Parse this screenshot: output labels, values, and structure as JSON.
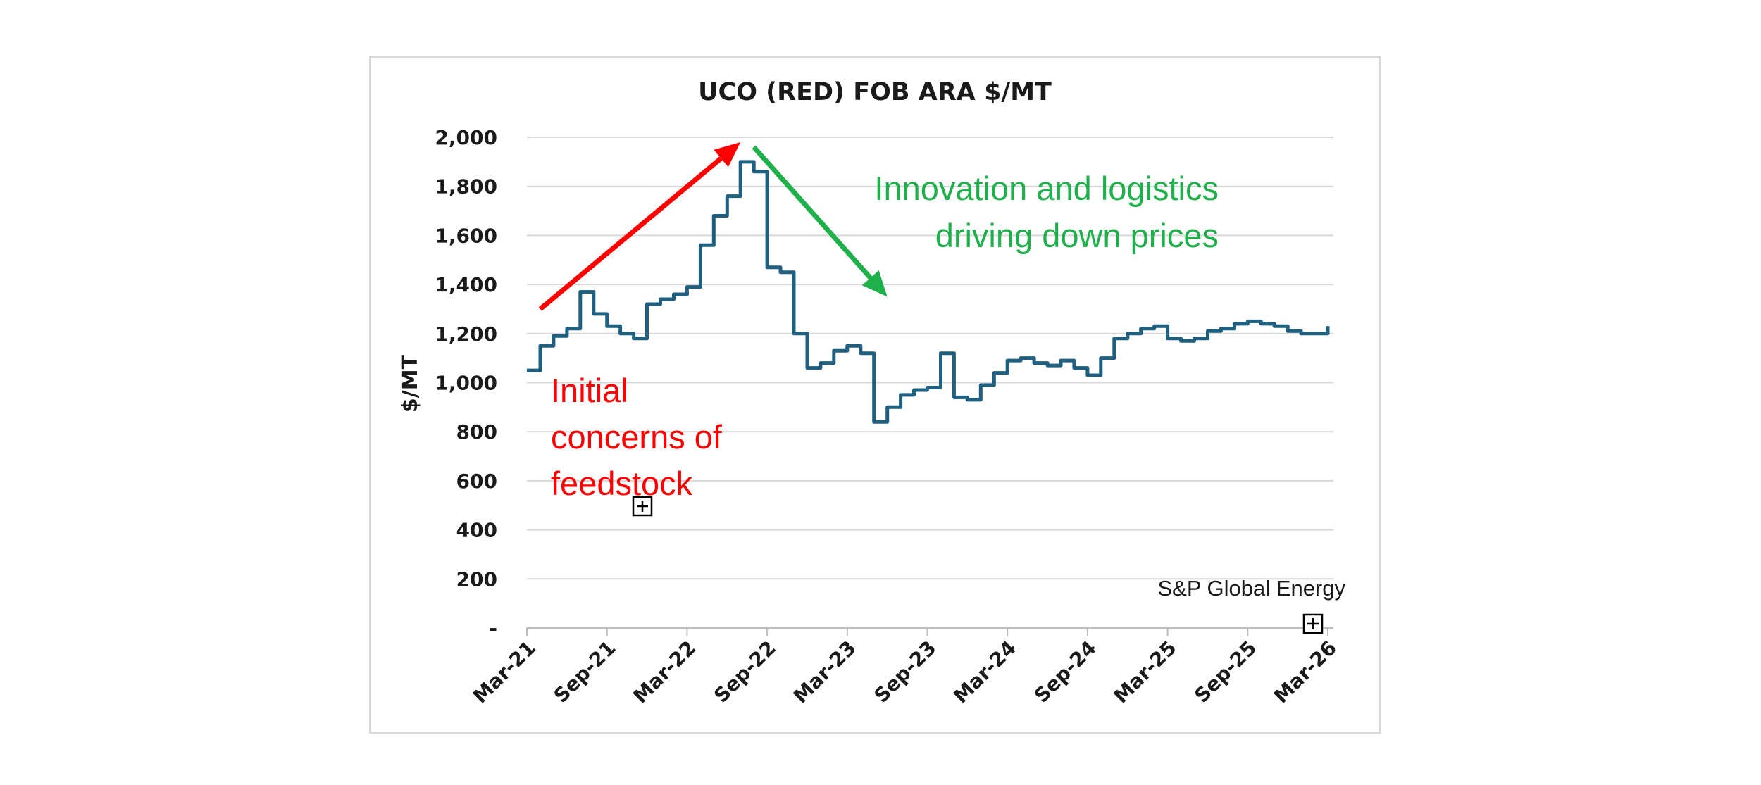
{
  "chart_data": {
    "type": "line",
    "title": "UCO (RED) FOB ARA $/MT",
    "ylabel": "$/MT",
    "xlabel": "",
    "ylim": [
      0,
      2000
    ],
    "y_ticks": [
      0,
      200,
      400,
      600,
      800,
      1000,
      1200,
      1400,
      1600,
      1800,
      2000
    ],
    "y_tick_labels": [
      "-",
      "200",
      "400",
      "600",
      "800",
      "1,000",
      "1,200",
      "1,400",
      "1,600",
      "1,800",
      "2,000"
    ],
    "x_tick_labels": [
      "Mar-21",
      "Sep-21",
      "Mar-22",
      "Sep-22",
      "Mar-23",
      "Sep-23",
      "Mar-24",
      "Sep-24",
      "Mar-25",
      "Sep-25",
      "Mar-26"
    ],
    "grid": true,
    "line_color": "#1f5f7f",
    "series": [
      {
        "name": "",
        "points": [
          [
            "Mar-21",
            1050
          ],
          [
            "Apr-21",
            1150
          ],
          [
            "May-21",
            1190
          ],
          [
            "Jun-21",
            1220
          ],
          [
            "Jul-21",
            1370
          ],
          [
            "Aug-21",
            1280
          ],
          [
            "Sep-21",
            1230
          ],
          [
            "Oct-21",
            1200
          ],
          [
            "Nov-21",
            1180
          ],
          [
            "Dec-21",
            1320
          ],
          [
            "Jan-22",
            1340
          ],
          [
            "Feb-22",
            1360
          ],
          [
            "Mar-22",
            1390
          ],
          [
            "Apr-22",
            1560
          ],
          [
            "May-22",
            1680
          ],
          [
            "Jun-22",
            1760
          ],
          [
            "Jul-22",
            1900
          ],
          [
            "Aug-22",
            1860
          ],
          [
            "Sep-22",
            1470
          ],
          [
            "Oct-22",
            1450
          ],
          [
            "Nov-22",
            1200
          ],
          [
            "Dec-22",
            1060
          ],
          [
            "Jan-23",
            1080
          ],
          [
            "Feb-23",
            1130
          ],
          [
            "Mar-23",
            1150
          ],
          [
            "Apr-23",
            1120
          ],
          [
            "May-23",
            840
          ],
          [
            "Jun-23",
            900
          ],
          [
            "Jul-23",
            950
          ],
          [
            "Aug-23",
            970
          ],
          [
            "Sep-23",
            980
          ],
          [
            "Oct-23",
            1120
          ],
          [
            "Nov-23",
            940
          ],
          [
            "Dec-23",
            930
          ],
          [
            "Jan-24",
            990
          ],
          [
            "Feb-24",
            1040
          ],
          [
            "Mar-24",
            1090
          ],
          [
            "Apr-24",
            1100
          ],
          [
            "May-24",
            1080
          ],
          [
            "Jun-24",
            1070
          ],
          [
            "Jul-24",
            1090
          ],
          [
            "Aug-24",
            1060
          ],
          [
            "Sep-24",
            1030
          ],
          [
            "Oct-24",
            1100
          ],
          [
            "Nov-24",
            1180
          ],
          [
            "Dec-24",
            1200
          ],
          [
            "Jan-25",
            1220
          ],
          [
            "Feb-25",
            1230
          ],
          [
            "Mar-25",
            1180
          ],
          [
            "Apr-25",
            1170
          ],
          [
            "May-25",
            1180
          ],
          [
            "Jun-25",
            1210
          ],
          [
            "Jul-25",
            1220
          ],
          [
            "Aug-25",
            1240
          ],
          [
            "Sep-25",
            1250
          ],
          [
            "Oct-25",
            1240
          ],
          [
            "Nov-25",
            1230
          ],
          [
            "Dec-25",
            1210
          ],
          [
            "Jan-26",
            1200
          ],
          [
            "Feb-26",
            1200
          ],
          [
            "Mar-26",
            1230
          ]
        ]
      }
    ],
    "annotations": [
      {
        "lines": [
          "Initial",
          "concerns of",
          "feedstock"
        ],
        "color": "#ff0000"
      },
      {
        "lines": [
          "Innovation and logistics",
          "driving down prices"
        ],
        "color": "#1fb04b"
      }
    ],
    "arrows": [
      {
        "color": "#ff0000",
        "from": [
          "Apr-21",
          1300
        ],
        "to": [
          "Jul-22",
          1980
        ],
        "direction": "up"
      },
      {
        "color": "#1fb04b",
        "from": [
          "Aug-22",
          1960
        ],
        "to": [
          "Jun-23",
          1350
        ],
        "direction": "down"
      }
    ],
    "source": "S&P Global Energy"
  }
}
